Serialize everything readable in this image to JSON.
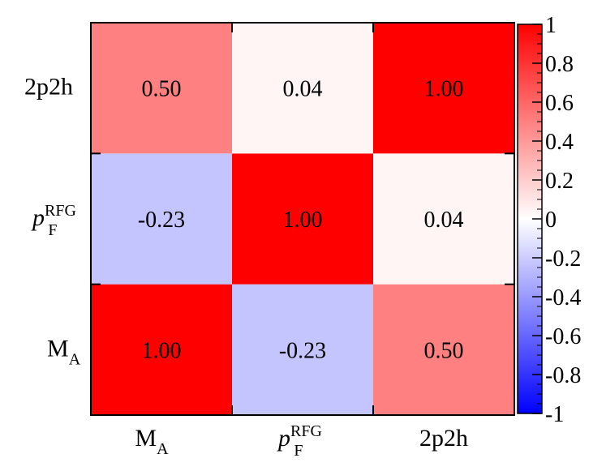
{
  "chart_data": {
    "type": "heatmap",
    "title": "",
    "x_categories": [
      {
        "main": "M",
        "sub": "A",
        "sup": ""
      },
      {
        "main": "p",
        "sub": "F",
        "sup": "RFG",
        "italic": true
      },
      {
        "main": "2p2h",
        "sub": "",
        "sup": ""
      }
    ],
    "y_categories": [
      {
        "main": "M",
        "sub": "A",
        "sup": ""
      },
      {
        "main": "p",
        "sub": "F",
        "sup": "RFG",
        "italic": true
      },
      {
        "main": "2p2h",
        "sub": "",
        "sup": ""
      }
    ],
    "values": [
      [
        1.0,
        -0.23,
        0.5
      ],
      [
        -0.23,
        1.0,
        0.04
      ],
      [
        0.5,
        0.04,
        1.0
      ]
    ],
    "value_labels": [
      [
        "1.00",
        "-0.23",
        "0.50"
      ],
      [
        "-0.23",
        "1.00",
        "0.04"
      ],
      [
        "0.50",
        "0.04",
        "1.00"
      ]
    ],
    "colorbar": {
      "range": [
        -1,
        1
      ],
      "ticks": [
        1,
        0.8,
        0.6,
        0.4,
        0.2,
        0,
        -0.2,
        -0.4,
        -0.6,
        -0.8,
        -1
      ],
      "tick_labels": [
        "1",
        "0.8",
        "0.6",
        "0.4",
        "0.2",
        "0",
        "-0.2",
        "-0.4",
        "-0.6",
        "-0.8",
        "-1"
      ],
      "colors": {
        "negative": "#0000ff",
        "zero": "#ffffff",
        "positive": "#ff0000"
      }
    }
  }
}
